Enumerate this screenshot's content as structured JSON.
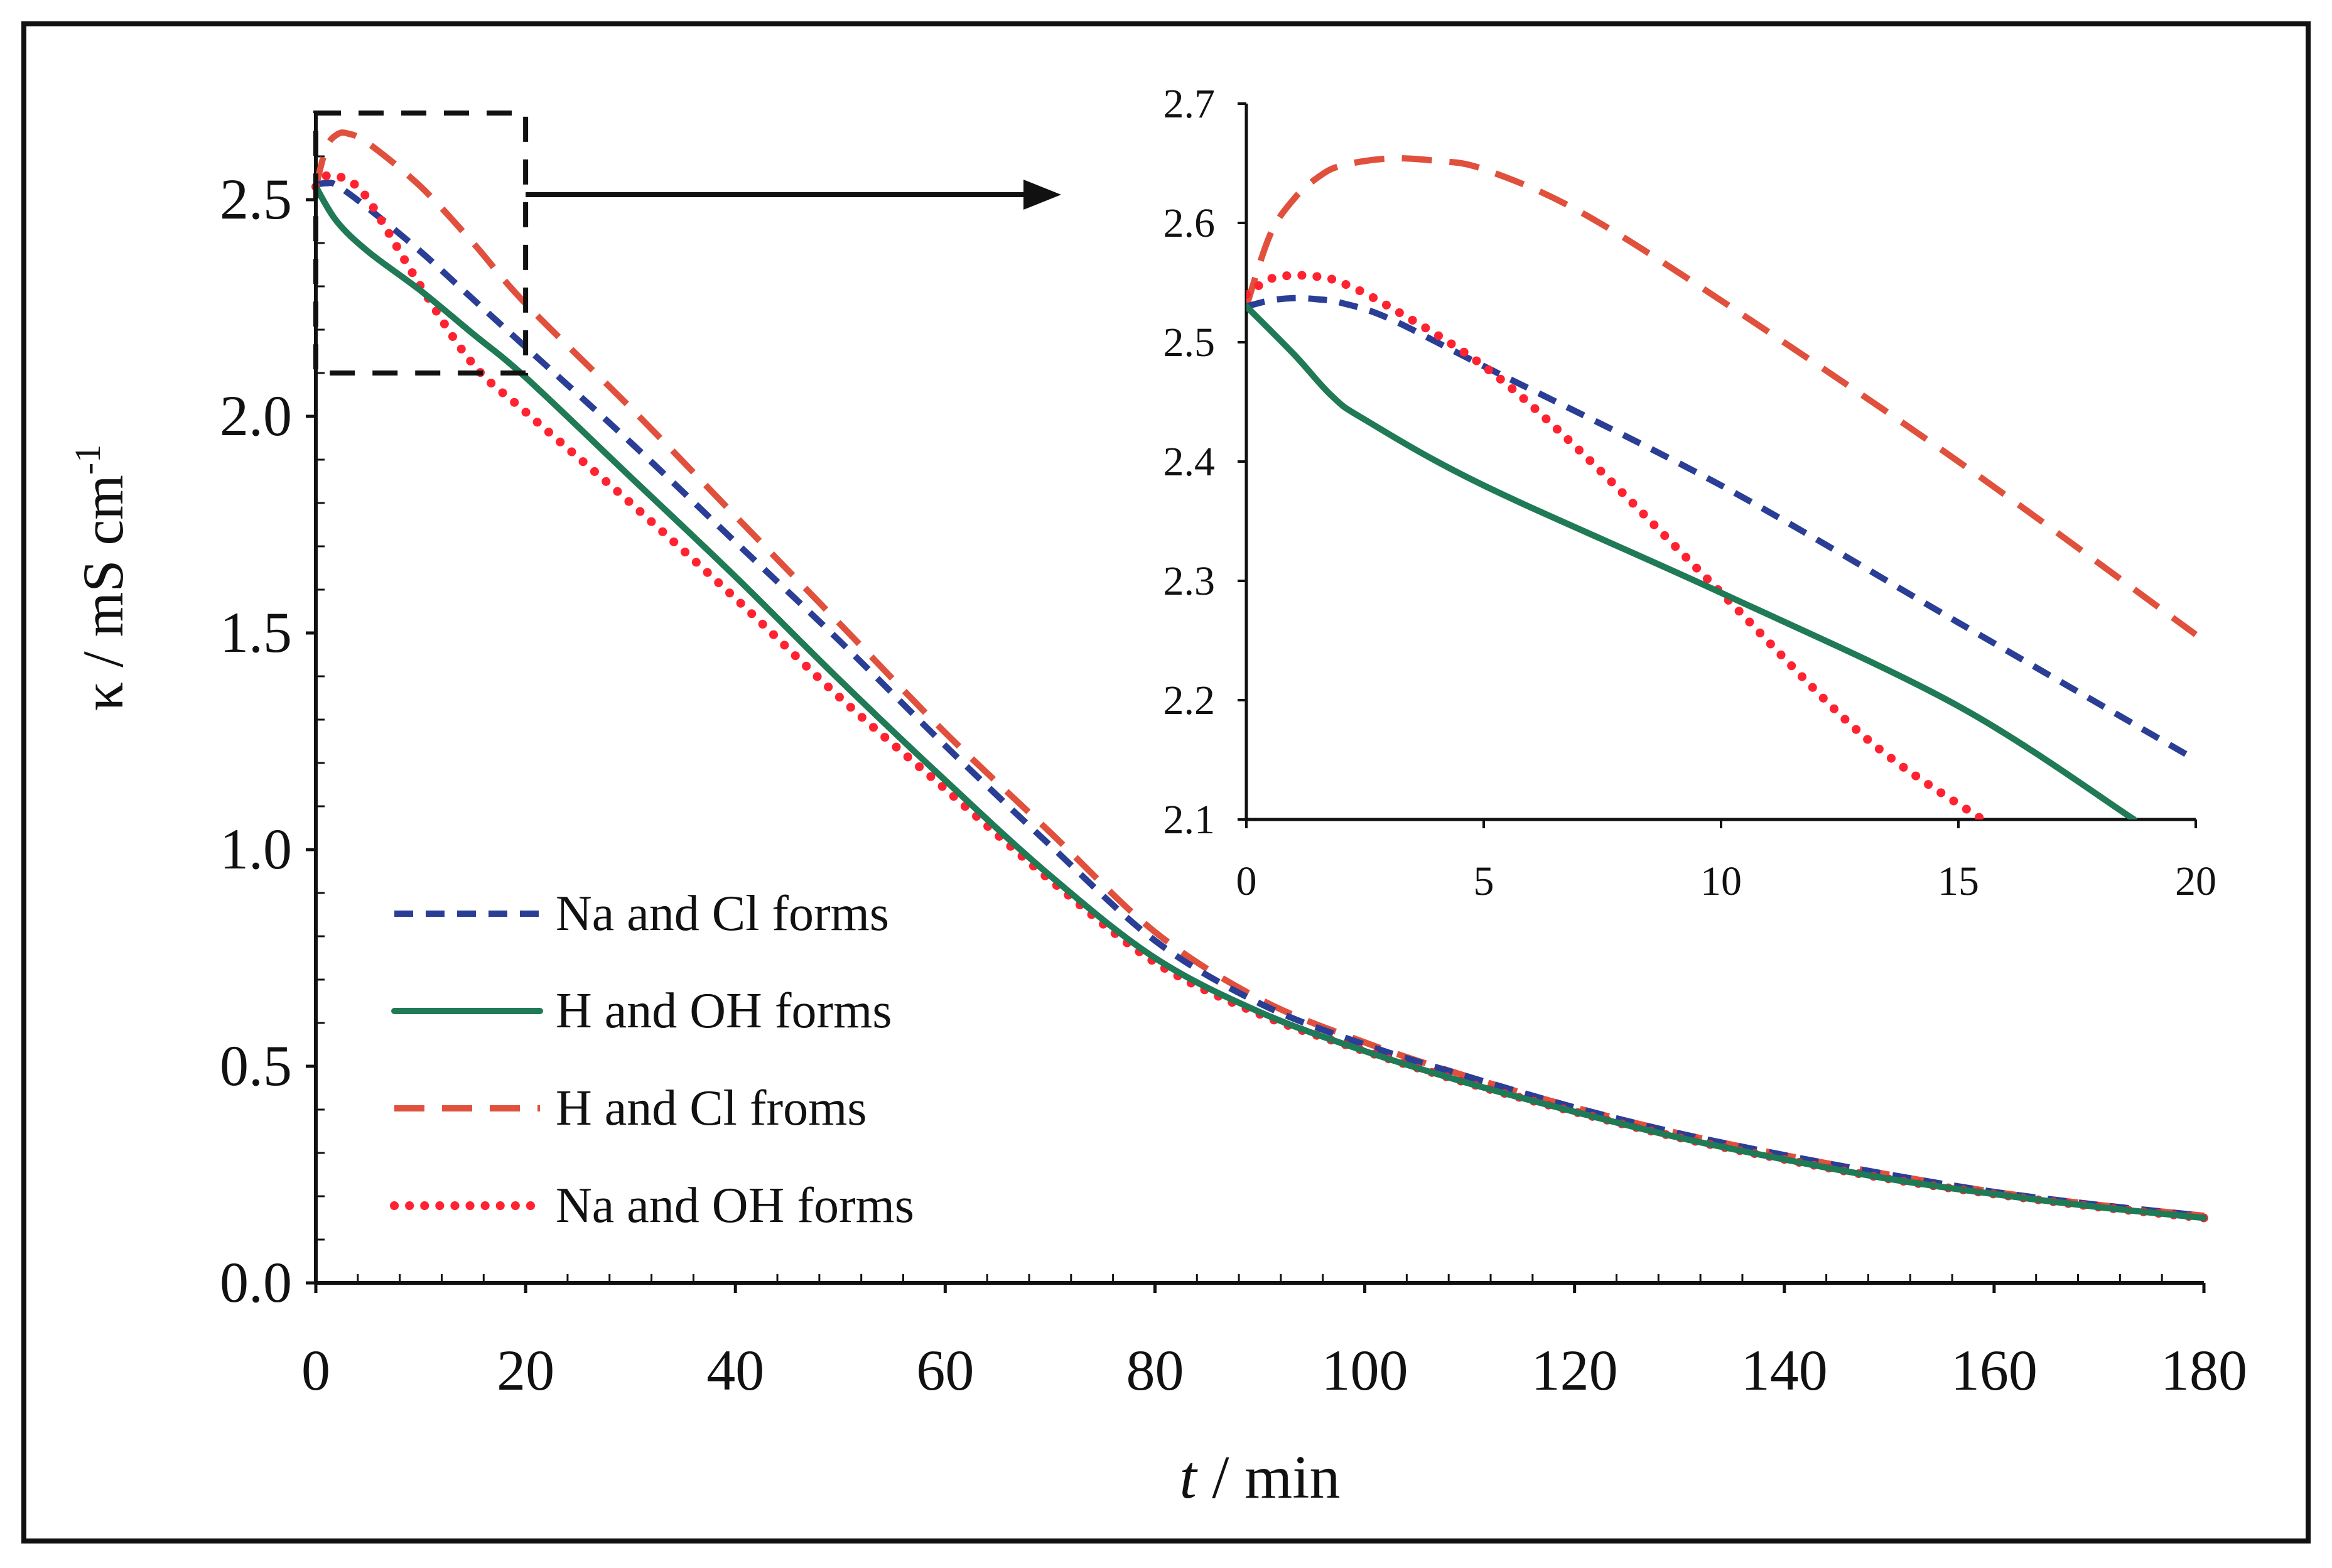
{
  "colors": {
    "frame": "#111111",
    "axis": "#111111",
    "na_cl": "#2a3e96",
    "h_oh": "#1f7a55",
    "h_cl": "#e0503c",
    "na_oh": "#ff2230"
  },
  "chart_data": [
    {
      "id": "main",
      "type": "line",
      "title": "",
      "xlabel_italic": "t",
      "xlabel_rest": " / min",
      "ylabel": "κ / mS cm",
      "ylabel_sup": "-1",
      "xlim": [
        0,
        180
      ],
      "ylim": [
        0,
        2.7
      ],
      "xticks": [
        {
          "value": 0,
          "label": "0"
        },
        {
          "value": 20,
          "label": "20"
        },
        {
          "value": 40,
          "label": "40"
        },
        {
          "value": 60,
          "label": "60"
        },
        {
          "value": 80,
          "label": "80"
        },
        {
          "value": 100,
          "label": "100"
        },
        {
          "value": 120,
          "label": "120"
        },
        {
          "value": 140,
          "label": "140"
        },
        {
          "value": 160,
          "label": "160"
        },
        {
          "value": 180,
          "label": "180"
        }
      ],
      "yticks": [
        {
          "value": 0,
          "label": "0.0"
        },
        {
          "value": 0.5,
          "label": "0.5"
        },
        {
          "value": 1.0,
          "label": "1.0"
        },
        {
          "value": 1.5,
          "label": "1.5"
        },
        {
          "value": 2.0,
          "label": "2.0"
        },
        {
          "value": 2.5,
          "label": "2.5"
        }
      ],
      "legend_position": "bottom-left",
      "zoom_box": {
        "x": [
          0,
          20
        ],
        "y": [
          2.1,
          2.7
        ]
      },
      "series": [
        {
          "key": "na_cl",
          "name": "Na and Cl forms",
          "x": [
            0,
            1,
            2,
            5,
            10,
            15,
            20,
            30,
            40,
            50,
            60,
            70,
            80,
            90,
            100,
            110,
            120,
            130,
            140,
            150,
            160,
            170,
            180
          ],
          "y": [
            2.535,
            2.538,
            2.533,
            2.48,
            2.38,
            2.27,
            2.16,
            1.94,
            1.71,
            1.48,
            1.24,
            1.01,
            0.79,
            0.645,
            0.55,
            0.475,
            0.405,
            0.345,
            0.295,
            0.25,
            0.21,
            0.18,
            0.155
          ]
        },
        {
          "key": "h_oh",
          "name": "H and OH forms",
          "x": [
            0,
            2,
            5,
            10,
            15,
            20,
            30,
            40,
            50,
            60,
            70,
            80,
            90,
            100,
            110,
            120,
            130,
            140,
            150,
            160,
            170,
            180
          ],
          "y": [
            2.53,
            2.45,
            2.38,
            2.29,
            2.19,
            2.09,
            1.86,
            1.63,
            1.39,
            1.16,
            0.94,
            0.75,
            0.625,
            0.535,
            0.46,
            0.395,
            0.335,
            0.285,
            0.24,
            0.205,
            0.175,
            0.15
          ]
        },
        {
          "key": "h_cl",
          "name": "H and Cl froms",
          "x": [
            0,
            1,
            2,
            3,
            5,
            10,
            15,
            20,
            30,
            40,
            50,
            60,
            70,
            80,
            90,
            100,
            110,
            120,
            130,
            140,
            150,
            160,
            170,
            180
          ],
          "y": [
            2.53,
            2.62,
            2.65,
            2.653,
            2.63,
            2.53,
            2.4,
            2.26,
            2.02,
            1.77,
            1.52,
            1.27,
            1.04,
            0.81,
            0.655,
            0.555,
            0.475,
            0.405,
            0.345,
            0.295,
            0.25,
            0.21,
            0.18,
            0.155
          ]
        },
        {
          "key": "na_oh",
          "name": "Na and OH forms",
          "x": [
            0,
            1,
            2,
            3,
            5,
            10,
            15,
            20,
            30,
            40,
            50,
            60,
            70,
            80,
            90,
            100,
            110,
            120,
            130,
            140,
            150,
            160,
            170,
            180
          ],
          "y": [
            2.53,
            2.555,
            2.553,
            2.545,
            2.5,
            2.3,
            2.12,
            2.01,
            1.8,
            1.58,
            1.35,
            1.14,
            0.93,
            0.74,
            0.62,
            0.535,
            0.46,
            0.395,
            0.335,
            0.285,
            0.24,
            0.205,
            0.175,
            0.15
          ]
        }
      ]
    },
    {
      "id": "inset",
      "type": "line",
      "title": "",
      "xlim": [
        0,
        20
      ],
      "ylim": [
        2.1,
        2.7
      ],
      "xticks": [
        {
          "value": 0,
          "label": "0"
        },
        {
          "value": 5,
          "label": "5"
        },
        {
          "value": 10,
          "label": "10"
        },
        {
          "value": 15,
          "label": "15"
        },
        {
          "value": 20,
          "label": "20"
        }
      ],
      "yticks": [
        {
          "value": 2.1,
          "label": "2.1"
        },
        {
          "value": 2.2,
          "label": "2.2"
        },
        {
          "value": 2.3,
          "label": "2.3"
        },
        {
          "value": 2.4,
          "label": "2.4"
        },
        {
          "value": 2.5,
          "label": "2.5"
        },
        {
          "value": 2.6,
          "label": "2.6"
        },
        {
          "value": 2.7,
          "label": "2.7"
        }
      ],
      "series": [
        {
          "key": "na_cl",
          "name": "Na and Cl forms",
          "x": [
            0,
            0.5,
            1,
            1.5,
            2,
            3,
            5,
            10,
            15,
            20
          ],
          "y": [
            2.53,
            2.535,
            2.537,
            2.536,
            2.533,
            2.52,
            2.48,
            2.38,
            2.265,
            2.15
          ]
        },
        {
          "key": "h_oh",
          "name": "H and OH forms",
          "x": [
            0,
            1,
            1.8,
            2.5,
            5,
            10,
            15,
            18.7
          ],
          "y": [
            2.53,
            2.49,
            2.455,
            2.435,
            2.38,
            2.29,
            2.195,
            2.1
          ]
        },
        {
          "key": "h_cl",
          "name": "H and Cl froms",
          "x": [
            0,
            0.5,
            1,
            1.5,
            2,
            3,
            4,
            5,
            7,
            10,
            15,
            20
          ],
          "y": [
            2.53,
            2.59,
            2.62,
            2.638,
            2.648,
            2.654,
            2.652,
            2.645,
            2.61,
            2.535,
            2.4,
            2.255
          ]
        },
        {
          "key": "na_oh",
          "name": "Na and OH forms",
          "x": [
            0,
            0.5,
            1,
            1.5,
            2,
            3,
            5,
            7,
            10,
            13,
            15.5
          ],
          "y": [
            2.54,
            2.553,
            2.556,
            2.555,
            2.55,
            2.53,
            2.48,
            2.41,
            2.29,
            2.17,
            2.1
          ]
        }
      ]
    }
  ]
}
